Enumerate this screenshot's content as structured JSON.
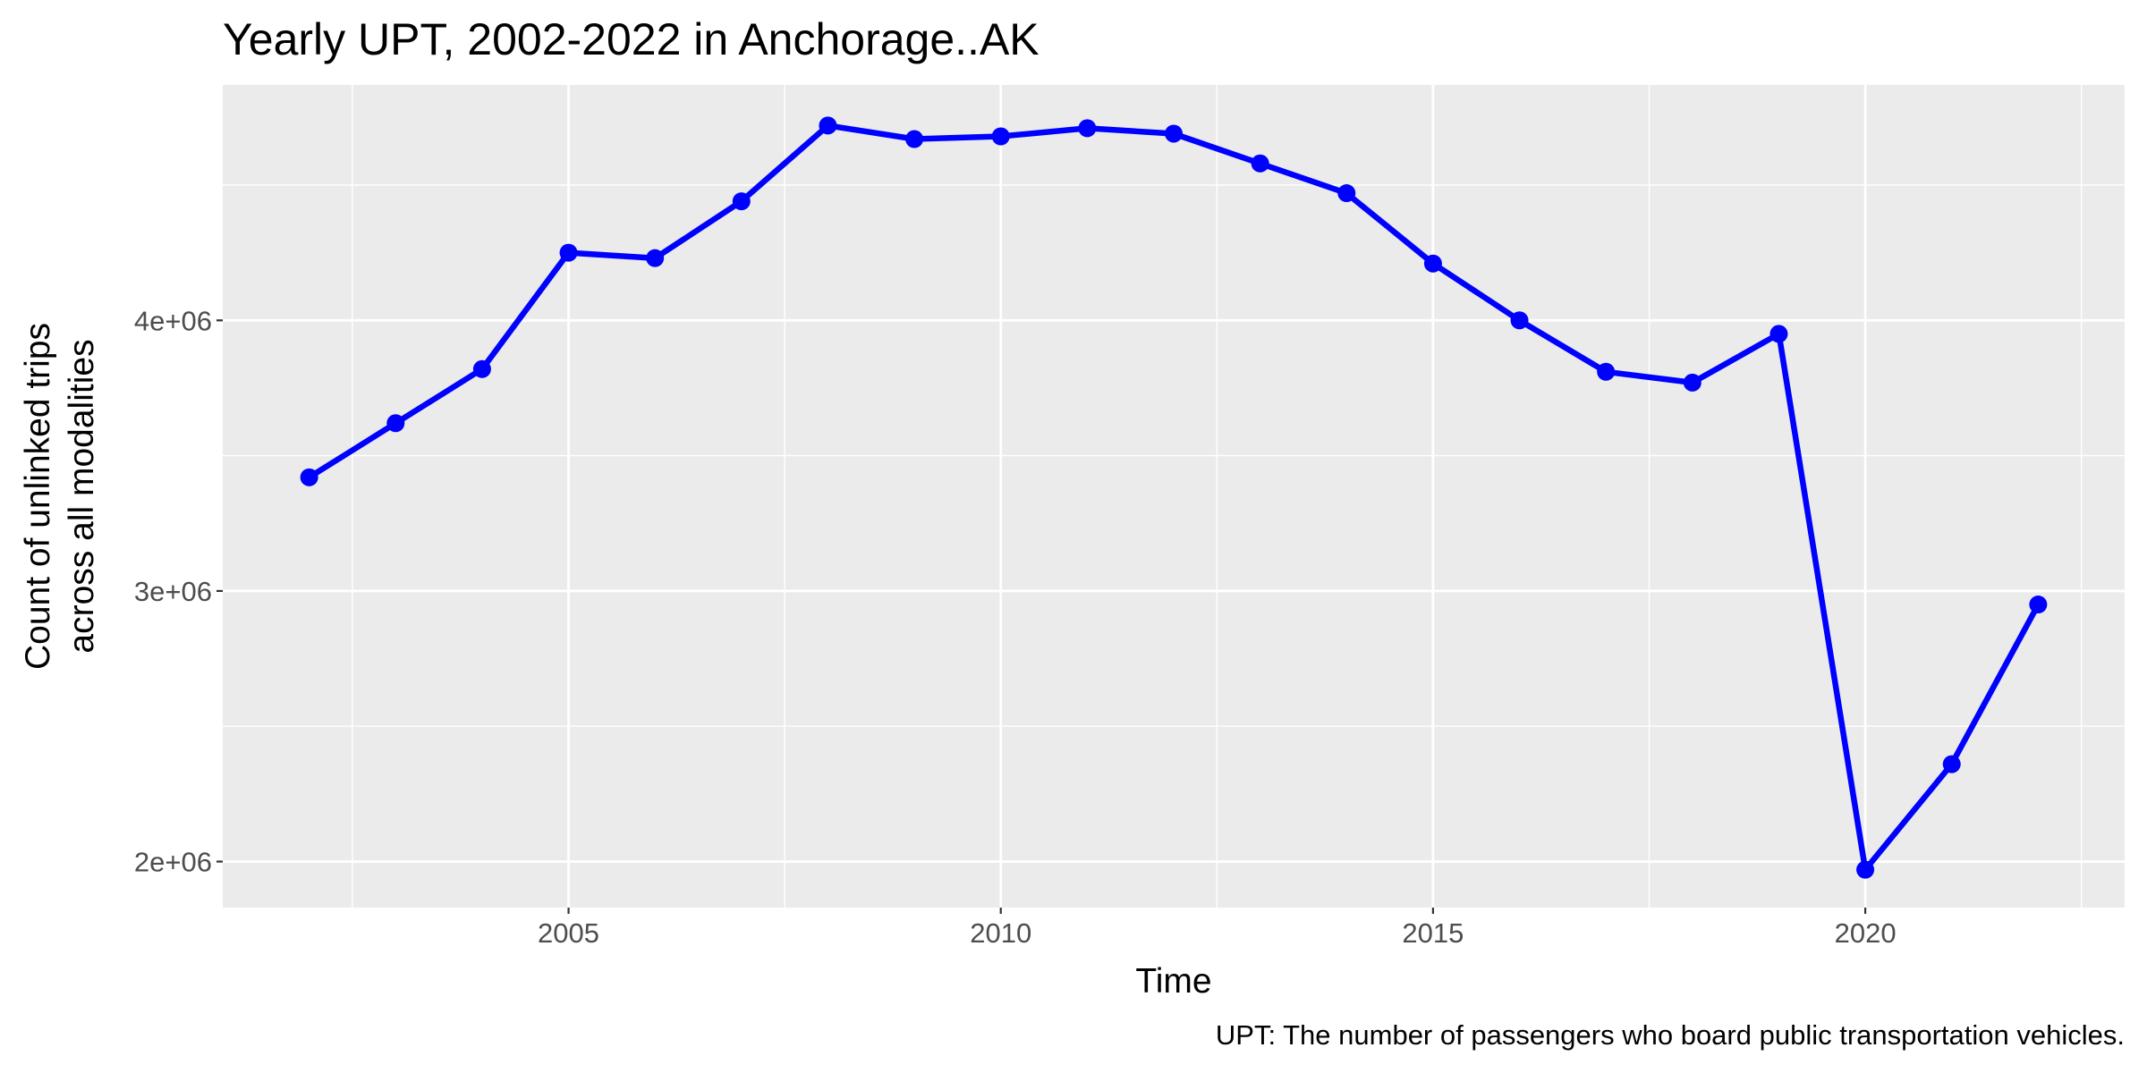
{
  "chart_data": {
    "type": "line",
    "title": "Yearly UPT, 2002-2022 in Anchorage..AK",
    "xlabel": "Time",
    "ylabel_lines": [
      "Count of unlinked trips",
      "across all modalities"
    ],
    "caption": "UPT: The number of passengers who board public transportation vehicles.",
    "x_ticks": [
      2005,
      2010,
      2015,
      2020
    ],
    "x_tick_labels": [
      "2005",
      "2010",
      "2015",
      "2020"
    ],
    "y_ticks": [
      2000000,
      3000000,
      4000000
    ],
    "y_tick_labels": [
      "2e+06",
      "3e+06",
      "4e+06"
    ],
    "xlim": [
      2001,
      2023
    ],
    "ylim": [
      1830000,
      4870000
    ],
    "grid": true,
    "legend": "none",
    "line_color": "#0000ff",
    "panel_background": "#ebebeb",
    "grid_color": "#ffffff",
    "series": [
      {
        "x": [
          2002,
          2003,
          2004,
          2005,
          2006,
          2007,
          2008,
          2009,
          2010,
          2011,
          2012,
          2013,
          2014,
          2015,
          2016,
          2017,
          2018,
          2019,
          2020,
          2021,
          2022
        ],
        "y": [
          3420000,
          3620000,
          3820000,
          4250000,
          4230000,
          4440000,
          4720000,
          4670000,
          4680000,
          4710000,
          4690000,
          4580000,
          4470000,
          4210000,
          4000000,
          3810000,
          3770000,
          3950000,
          1970000,
          2360000,
          2950000
        ]
      }
    ]
  }
}
